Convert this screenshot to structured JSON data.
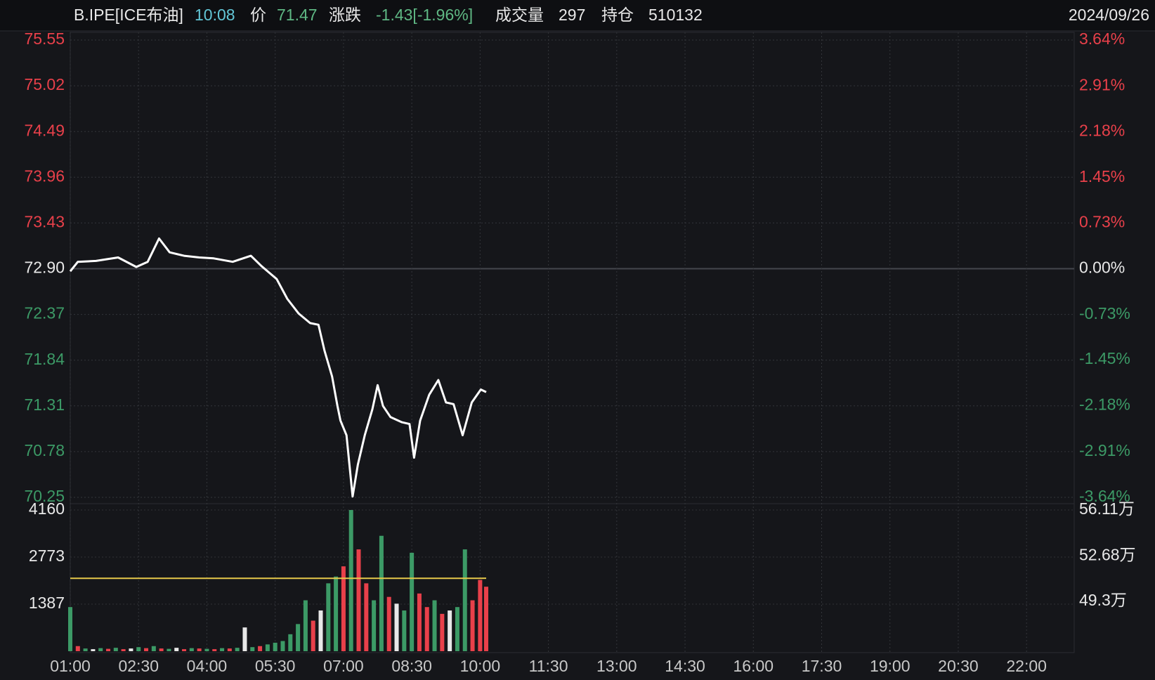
{
  "header": {
    "symbol": "B.IPE[ICE布油]",
    "time": "10:08",
    "price_label": "价",
    "price": "71.47",
    "change_label": "涨跌",
    "change": "-1.43[-1.96%]",
    "volume_label": "成交量",
    "volume": "297",
    "oi_label": "持仓",
    "oi": "510132",
    "date": "2024/09/26"
  },
  "chart_data": [
    {
      "type": "line",
      "color": "#ffffff",
      "up_color": "#e8404a",
      "down_color": "#3c9a66",
      "flat_color": "#e8e8e8",
      "x": [
        "01:00",
        "01:10",
        "01:34",
        "02:03",
        "02:27",
        "02:42",
        "02:57",
        "03:11",
        "03:30",
        "03:50",
        "04:09",
        "04:34",
        "04:58",
        "05:12",
        "05:32",
        "05:46",
        "06:01",
        "06:16",
        "06:27",
        "06:35",
        "06:45",
        "06:52",
        "06:56",
        "07:04",
        "07:12",
        "07:19",
        "07:28",
        "07:38",
        "07:45",
        "07:52",
        "08:02",
        "08:17",
        "08:27",
        "08:33",
        "08:41",
        "08:53",
        "09:05",
        "09:15",
        "09:25",
        "09:37",
        "09:49",
        "10:01",
        "10:08"
      ],
      "values": [
        72.87,
        72.98,
        72.99,
        73.03,
        72.92,
        72.98,
        73.25,
        73.09,
        73.05,
        73.03,
        73.02,
        72.98,
        73.05,
        72.93,
        72.78,
        72.55,
        72.38,
        72.27,
        72.25,
        71.95,
        71.65,
        71.31,
        71.14,
        70.97,
        70.26,
        70.63,
        70.97,
        71.27,
        71.55,
        71.31,
        71.18,
        71.12,
        71.1,
        70.71,
        71.14,
        71.44,
        71.61,
        71.35,
        71.33,
        70.97,
        71.35,
        71.5,
        71.47
      ],
      "xlim": [
        "01:00",
        "23:00"
      ],
      "xticks": [
        "01:00",
        "02:30",
        "04:00",
        "05:30",
        "07:00",
        "08:30",
        "10:00",
        "11:30",
        "13:00",
        "14:30",
        "16:00",
        "17:30",
        "19:00",
        "20:30",
        "22:00"
      ],
      "ylim": [
        70.25,
        75.55
      ],
      "yticks": [
        75.55,
        75.02,
        74.49,
        73.96,
        73.43,
        {
          "value": 72.9,
          "label": "72.90"
        },
        72.37,
        71.84,
        71.31,
        70.78,
        70.25
      ],
      "y2lim": [
        -3.64,
        3.64
      ],
      "y2ticks": [
        {
          "value": 3.64,
          "label": "3.64%"
        },
        {
          "value": 2.91,
          "label": "2.91%"
        },
        {
          "value": 2.18,
          "label": "2.18%"
        },
        {
          "value": 1.45,
          "label": "1.45%"
        },
        {
          "value": 0.73,
          "label": "0.73%"
        },
        {
          "value": 0,
          "label": "0.00%"
        },
        {
          "value": -0.73,
          "label": "-0.73%"
        },
        {
          "value": -1.45,
          "label": "-1.45%"
        },
        {
          "value": -2.18,
          "label": "-2.18%"
        },
        {
          "value": -2.91,
          "label": "-2.91%"
        },
        {
          "value": -3.64,
          "label": "-3.64%"
        }
      ],
      "grid": true
    },
    {
      "type": "bar",
      "x": [
        "01:00",
        "01:10",
        "01:20",
        "01:30",
        "01:40",
        "01:50",
        "02:00",
        "02:10",
        "02:20",
        "02:30",
        "02:40",
        "02:50",
        "03:00",
        "03:10",
        "03:20",
        "03:30",
        "03:40",
        "03:50",
        "04:00",
        "04:10",
        "04:20",
        "04:30",
        "04:40",
        "04:50",
        "05:00",
        "05:10",
        "05:20",
        "05:30",
        "05:40",
        "05:50",
        "06:00",
        "06:10",
        "06:20",
        "06:30",
        "06:40",
        "06:50",
        "07:00",
        "07:10",
        "07:20",
        "07:30",
        "07:40",
        "07:50",
        "08:00",
        "08:10",
        "08:20",
        "08:30",
        "08:40",
        "08:50",
        "09:00",
        "09:10",
        "09:20",
        "09:30",
        "09:40",
        "09:50",
        "10:00",
        "10:08"
      ],
      "series": [
        {
          "values": [
            1300,
            150,
            80,
            60,
            90,
            70,
            100,
            60,
            80,
            120,
            90,
            150,
            80,
            70,
            100,
            60,
            90,
            80,
            70,
            60,
            90,
            80,
            100,
            700,
            120,
            150,
            200,
            250,
            300,
            500,
            800,
            1500,
            900,
            1200,
            2000,
            2200,
            2500,
            4160,
            3000,
            2000,
            1500,
            3400,
            1600,
            1400,
            1200,
            2900,
            1700,
            1300,
            1500,
            1100,
            1200,
            1300,
            3000,
            1500,
            2100,
            1900
          ],
          "colors": [
            "#3c9a66",
            "#e8404a",
            "#3c9a66",
            "#e8e8e8",
            "#3c9a66",
            "#e8404a",
            "#3c9a66",
            "#e8404a",
            "#e8e8e8",
            "#3c9a66",
            "#e8404a",
            "#3c9a66",
            "#e8404a",
            "#3c9a66",
            "#e8e8e8",
            "#e8404a",
            "#3c9a66",
            "#e8404a",
            "#3c9a66",
            "#e8404a",
            "#3c9a66",
            "#e8404a",
            "#3c9a66",
            "#e8e8e8",
            "#3c9a66",
            "#e8404a",
            "#3c9a66",
            "#3c9a66",
            "#3c9a66",
            "#3c9a66",
            "#3c9a66",
            "#3c9a66",
            "#e8404a",
            "#e8e8e8",
            "#3c9a66",
            "#3c9a66",
            "#e8404a",
            "#3c9a66",
            "#e8404a",
            "#e8404a",
            "#3c9a66",
            "#3c9a66",
            "#e8404a",
            "#e8e8e8",
            "#3c9a66",
            "#3c9a66",
            "#e8404a",
            "#e8404a",
            "#3c9a66",
            "#e8404a",
            "#e8e8e8",
            "#3c9a66",
            "#3c9a66",
            "#e8404a",
            "#e8404a",
            "#e8404a"
          ]
        },
        {
          "axis": "y2",
          "color": "#e6c84a",
          "values": [
            510100,
            510100,
            510100,
            510100,
            510100,
            510100,
            510100,
            510100,
            510100,
            510100,
            510100,
            510100,
            510100,
            510100,
            510100,
            510100,
            510100,
            510100,
            510100,
            510100,
            510100,
            510100,
            510100,
            510100,
            510100,
            510100,
            510100,
            510100,
            510100,
            510100,
            510100,
            510100,
            510100,
            510100,
            510100,
            510100,
            510100,
            510100,
            510100,
            510100,
            510100,
            510100,
            510100,
            510100,
            510100,
            510100,
            510100,
            510100,
            510100,
            510100,
            510100,
            510100,
            510100,
            510100,
            510100,
            510132
          ]
        }
      ],
      "ylim": [
        0,
        4160
      ],
      "yticks": [
        4160,
        2773,
        1387
      ],
      "y2lim": [
        455600,
        561100
      ],
      "y2ticks": [
        {
          "value": 561100,
          "label": "56.11万"
        },
        {
          "value": 526800,
          "label": "52.68万"
        },
        {
          "value": 493000,
          "label": "49.3万"
        }
      ]
    }
  ]
}
